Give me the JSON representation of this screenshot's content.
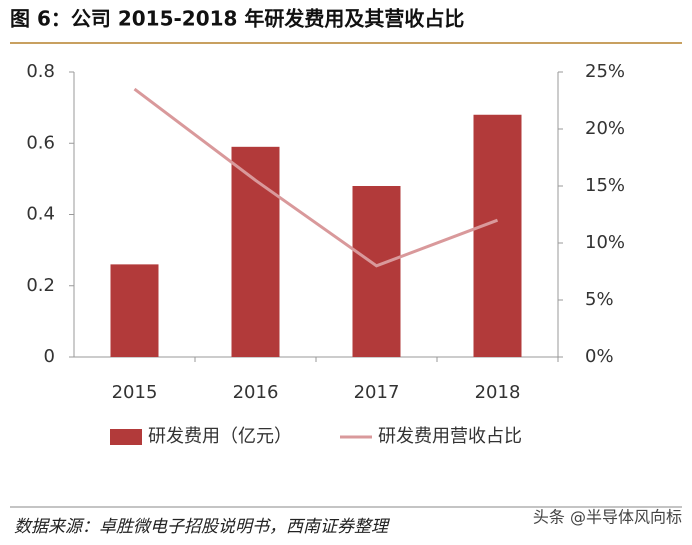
{
  "header": {
    "title": "图 6：公司 2015-2018 年研发费用及其营收占比"
  },
  "chart_data": {
    "type": "bar-line",
    "categories": [
      "2015",
      "2016",
      "2017",
      "2018"
    ],
    "series": [
      {
        "name": "研发费用（亿元）",
        "color": "#b23a3a",
        "type": "bar",
        "values": [
          0.26,
          0.59,
          0.48,
          0.68
        ]
      },
      {
        "name": "研发费用营收占比",
        "color": "#d9999b",
        "type": "line",
        "axis": "y2",
        "values": [
          23.5,
          15.5,
          8,
          12
        ]
      }
    ],
    "ylim": [
      0,
      0.8
    ],
    "yticks": [
      0,
      0.2,
      0.4,
      0.6,
      0.8
    ],
    "y2lim": [
      0,
      25
    ],
    "y2ticks": [
      {
        "value": 0,
        "label": "0%"
      },
      {
        "value": 5,
        "label": "5%"
      },
      {
        "value": 10,
        "label": "10%"
      },
      {
        "value": 15,
        "label": "15%"
      },
      {
        "value": 20,
        "label": "20%"
      },
      {
        "value": 25,
        "label": "25%"
      }
    ],
    "legend": "bottom"
  },
  "footer": {
    "source": "数据来源：卓胜微电子招股说明书，西南证券整理",
    "watermark": "头条 @半导体风向标"
  }
}
